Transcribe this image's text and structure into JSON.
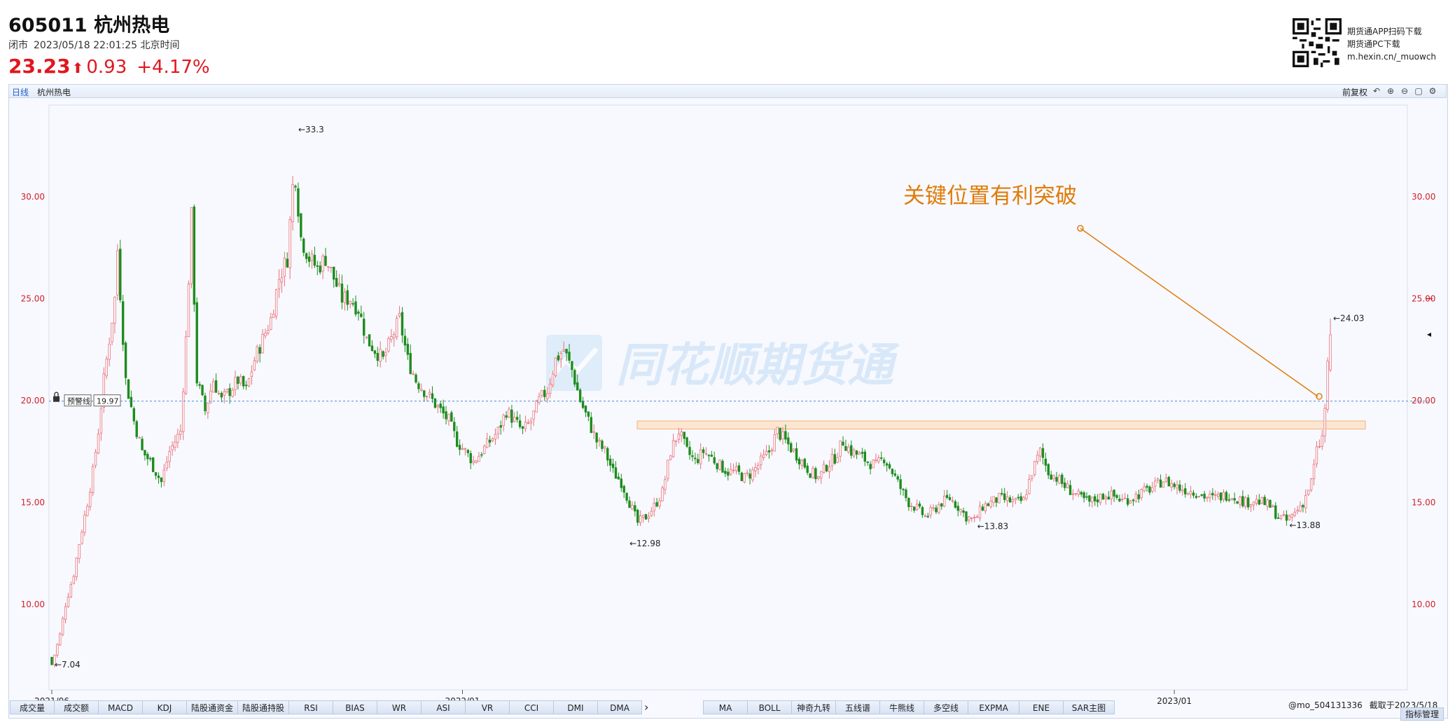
{
  "header": {
    "code_name": "605011 杭州热电",
    "status": "闭市",
    "datetime": "2023/05/18 22:01:25 北京时间",
    "last_price": "23.23",
    "change": "0.93",
    "change_pct": "+4.17%",
    "price_color": "#e0171f"
  },
  "qr_block": {
    "line1": "期货通APP扫码下载",
    "line2": "期货通PC下载",
    "line3": "m.hexin.cn/_muowch"
  },
  "toolbar": {
    "period": "日线",
    "name": "杭州热电",
    "adjust": "前复权",
    "tools": [
      "undo-icon",
      "zoom-in-icon",
      "zoom-out-icon",
      "save-icon",
      "settings-icon"
    ]
  },
  "watermark": "同花顺期货通",
  "annotation": {
    "text": "关键位置有利突破",
    "color": "#e07c0a"
  },
  "alert_line": {
    "label": "预警线",
    "value": "19.97"
  },
  "chart_data": {
    "type": "candlestick",
    "title": "",
    "x_ticks": [
      "2021/06",
      "2022/01",
      "2023/01"
    ],
    "y_ticks": [
      10.0,
      15.0,
      20.0,
      25.0,
      30.0
    ],
    "ylim": [
      5.8,
      34.5
    ],
    "grid": false,
    "up_color": "#e8717a",
    "down_color": "#1e8c1e",
    "marked_points": [
      {
        "date": "2021/06",
        "label": "7.04",
        "value": 7.04
      },
      {
        "date": "2021/10",
        "label": "33.3",
        "value": 33.3
      },
      {
        "date": "2022/03",
        "label": "12.98",
        "value": 12.98
      },
      {
        "date": "2022/10",
        "label": "13.83",
        "value": 13.83
      },
      {
        "date": "2023/04",
        "label": "13.88",
        "value": 13.88
      },
      {
        "date": "2023/05/18",
        "label": "24.03",
        "value": 24.03
      }
    ],
    "resistance_zone": [
      18.6,
      19.0
    ],
    "approximate_close_path": [
      [
        0,
        7.04
      ],
      [
        3,
        8.5
      ],
      [
        5,
        10
      ],
      [
        8,
        11.5
      ],
      [
        10,
        13
      ],
      [
        13,
        15
      ],
      [
        15,
        16.5
      ],
      [
        17,
        18.5
      ],
      [
        19,
        21
      ],
      [
        21,
        23
      ],
      [
        23,
        25
      ],
      [
        24,
        27.4
      ],
      [
        27,
        21
      ],
      [
        30,
        19
      ],
      [
        33,
        17.5
      ],
      [
        36,
        17
      ],
      [
        40,
        16
      ],
      [
        43,
        17.5
      ],
      [
        45,
        18
      ],
      [
        47,
        18.5
      ],
      [
        49,
        23
      ],
      [
        50,
        26
      ],
      [
        51,
        29
      ],
      [
        53,
        21
      ],
      [
        56,
        19.5
      ],
      [
        59,
        21
      ],
      [
        62,
        20
      ],
      [
        65,
        20.5
      ],
      [
        68,
        21
      ],
      [
        71,
        20.5
      ],
      [
        74,
        22
      ],
      [
        77,
        23
      ],
      [
        80,
        24
      ],
      [
        83,
        26
      ],
      [
        86,
        27
      ],
      [
        88,
        30.5
      ],
      [
        89,
        31
      ],
      [
        91,
        28
      ],
      [
        94,
        27
      ],
      [
        97,
        26.5
      ],
      [
        100,
        27
      ],
      [
        103,
        26
      ],
      [
        106,
        25
      ],
      [
        109,
        25
      ],
      [
        112,
        24.5
      ],
      [
        115,
        23
      ],
      [
        118,
        22.5
      ],
      [
        121,
        22
      ],
      [
        124,
        23
      ],
      [
        127,
        24
      ],
      [
        130,
        22
      ],
      [
        133,
        21
      ],
      [
        136,
        20.5
      ],
      [
        139,
        20
      ],
      [
        142,
        19.5
      ],
      [
        145,
        19
      ],
      [
        148,
        18
      ],
      [
        151,
        17.5
      ],
      [
        154,
        17
      ],
      [
        157,
        17.5
      ],
      [
        160,
        18
      ],
      [
        163,
        18.5
      ],
      [
        166,
        19.5
      ],
      [
        169,
        19
      ],
      [
        172,
        18.5
      ],
      [
        175,
        19
      ],
      [
        178,
        20
      ],
      [
        181,
        20.5
      ],
      [
        184,
        22
      ],
      [
        187,
        22.5
      ],
      [
        190,
        21.5
      ],
      [
        193,
        20
      ],
      [
        196,
        19
      ],
      [
        199,
        18
      ],
      [
        202,
        17.5
      ],
      [
        205,
        16.5
      ],
      [
        208,
        16
      ],
      [
        211,
        15
      ],
      [
        214,
        14
      ],
      [
        217,
        14.3
      ],
      [
        220,
        14.8
      ],
      [
        223,
        15.5
      ],
      [
        226,
        17.5
      ],
      [
        229,
        18.5
      ],
      [
        232,
        17.5
      ],
      [
        235,
        17
      ],
      [
        238,
        17.5
      ],
      [
        241,
        17.2
      ],
      [
        244,
        16.8
      ],
      [
        247,
        16.5
      ],
      [
        250,
        16.5
      ],
      [
        253,
        16.2
      ],
      [
        256,
        16.5
      ],
      [
        259,
        17
      ],
      [
        262,
        17.5
      ],
      [
        265,
        18.5
      ],
      [
        268,
        18
      ],
      [
        271,
        17.5
      ],
      [
        274,
        17
      ],
      [
        277,
        16.5
      ],
      [
        280,
        16.2
      ],
      [
        283,
        16.8
      ],
      [
        286,
        17.2
      ],
      [
        289,
        18
      ],
      [
        292,
        17.5
      ],
      [
        295,
        17.3
      ],
      [
        298,
        17
      ],
      [
        301,
        16.8
      ],
      [
        304,
        17.2
      ],
      [
        307,
        16.5
      ],
      [
        310,
        15.7
      ],
      [
        313,
        15
      ],
      [
        316,
        14.7
      ],
      [
        319,
        14.3
      ],
      [
        322,
        14.6
      ],
      [
        325,
        15
      ],
      [
        328,
        15.2
      ],
      [
        331,
        14.8
      ],
      [
        334,
        14.3
      ],
      [
        337,
        14.1
      ],
      [
        340,
        14.8
      ],
      [
        343,
        15
      ],
      [
        346,
        15.2
      ],
      [
        349,
        15.1
      ],
      [
        352,
        15
      ],
      [
        355,
        15.1
      ],
      [
        358,
        16.5
      ],
      [
        361,
        17.5
      ],
      [
        364,
        16.5
      ],
      [
        367,
        16.2
      ],
      [
        370,
        15.8
      ],
      [
        373,
        15.5
      ],
      [
        376,
        15.2
      ],
      [
        379,
        15
      ],
      [
        382,
        15.2
      ],
      [
        385,
        15.4
      ],
      [
        388,
        15.3
      ],
      [
        391,
        15.1
      ],
      [
        394,
        15.2
      ],
      [
        397,
        15.4
      ],
      [
        400,
        15.6
      ],
      [
        403,
        15.8
      ],
      [
        406,
        16.1
      ],
      [
        409,
        15.9
      ],
      [
        412,
        15.7
      ],
      [
        415,
        15.6
      ],
      [
        418,
        15.5
      ],
      [
        421,
        15.3
      ],
      [
        424,
        15.2
      ],
      [
        427,
        15.3
      ],
      [
        430,
        15.4
      ],
      [
        433,
        15.2
      ],
      [
        436,
        15.0
      ],
      [
        439,
        15.1
      ],
      [
        442,
        15.0
      ],
      [
        445,
        14.8
      ],
      [
        448,
        14.3
      ],
      [
        451,
        14.1
      ],
      [
        454,
        14.5
      ],
      [
        457,
        15
      ],
      [
        460,
        16
      ],
      [
        462,
        17.5
      ],
      [
        464,
        18.2
      ],
      [
        465,
        19.5
      ],
      [
        466,
        22
      ],
      [
        467,
        23.23
      ]
    ]
  },
  "bottom_tabs_left": [
    "成交量",
    "成交额",
    "MACD",
    "KDJ",
    "陆股通资金",
    "陆股通持股",
    "RSI",
    "BIAS",
    "WR",
    "ASI",
    "VR",
    "CCI",
    "DMI",
    "DMA"
  ],
  "bottom_tabs_right": [
    "MA",
    "BOLL",
    "神奇九转",
    "五线谱",
    "牛熊线",
    "多空线",
    "EXPMA",
    "ENE",
    "SAR主图"
  ],
  "more_label": "›",
  "footer": {
    "user": "@mo_504131336",
    "capture": "截取于2023/5/18",
    "indicator_mgr": "指标管理"
  }
}
